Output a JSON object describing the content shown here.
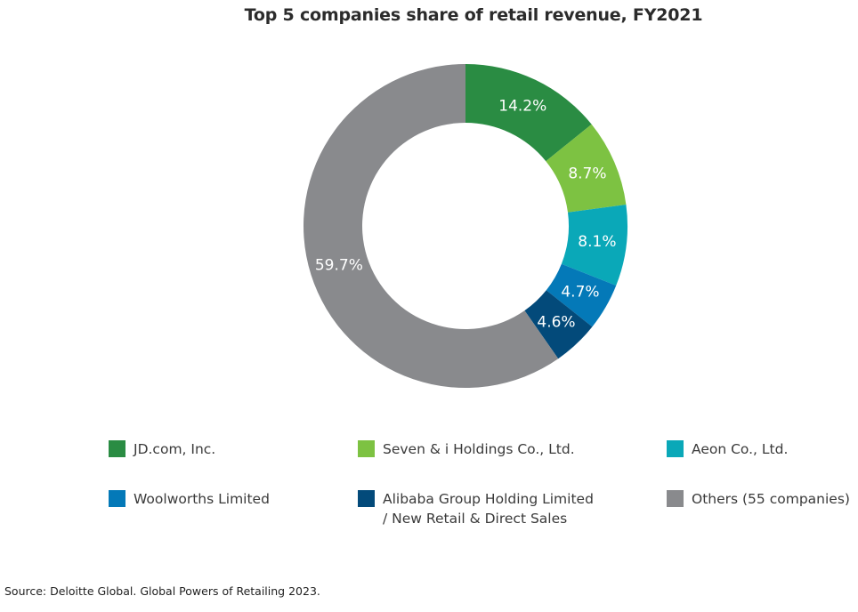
{
  "chart_data": {
    "type": "pie",
    "style": "donut",
    "title": "Top 5 companies share of retail revenue, FY2021",
    "unit": "%",
    "series": [
      {
        "name": "JD.com, Inc.",
        "value": 14.2,
        "label": "14.2%",
        "color": "#2a8c43"
      },
      {
        "name": "Seven & i Holdings Co., Ltd.",
        "value": 8.7,
        "label": "8.7%",
        "color": "#7dc242"
      },
      {
        "name": "Aeon Co., Ltd.",
        "value": 8.1,
        "label": "8.1%",
        "color": "#0aa8b8"
      },
      {
        "name": "Woolworths Limited",
        "value": 4.7,
        "label": "4.7%",
        "color": "#0479b8"
      },
      {
        "name": "Alibaba Group Holding Limited\n/ New Retail & Direct Sales",
        "value": 4.6,
        "label": "4.6%",
        "color": "#034a7a"
      },
      {
        "name": "Others (55 companies)",
        "value": 59.7,
        "label": "59.7%",
        "color": "#898a8d"
      }
    ],
    "legend_position": "bottom",
    "start_angle": "12 o'clock",
    "direction": "clockwise"
  },
  "source": "Source: Deloitte Global. Global Powers of Retailing 2023."
}
